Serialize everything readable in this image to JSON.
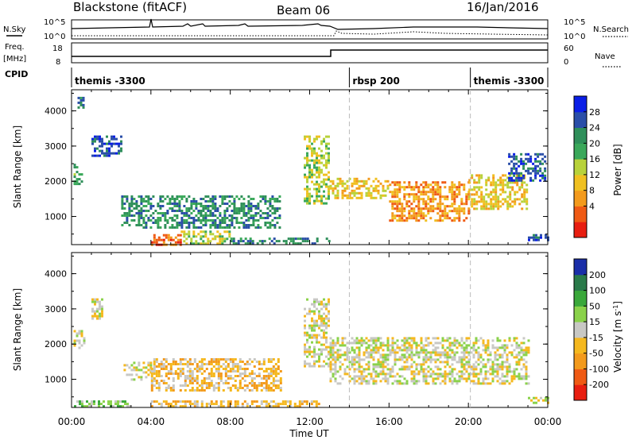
{
  "header": {
    "station": "Blackstone (fitACF)",
    "beam": "Beam 06",
    "date": "16/Jan/2016"
  },
  "labels": {
    "nsky": "N.Sky",
    "nsearch": "N.Search",
    "freq": "Freq.",
    "freq_unit": "[MHz]",
    "nave": "Nave",
    "cpid": "CPID",
    "nsky_ticks": [
      "10^5",
      "10^0"
    ],
    "nsearch_ticks": [
      "10^5",
      "10^0"
    ],
    "freq_ticks": [
      "18",
      "8"
    ],
    "nave_ticks": [
      "60",
      "0"
    ]
  },
  "cpid_segments": [
    {
      "label": "themis -3300",
      "start": 0
    },
    {
      "label": "rbsp 200",
      "start": 14
    },
    {
      "label": "themis -3300",
      "start": 20.1
    }
  ],
  "chart_data": [
    {
      "type": "heatmap",
      "name": "power",
      "ylabel": "Slant Range [km]",
      "xlim": [
        0,
        24
      ],
      "ylim": [
        200,
        4600
      ],
      "yticks": [
        1000,
        2000,
        3000,
        4000
      ],
      "colorbar": {
        "label": "Power [dB]",
        "ticks": [
          "28",
          "24",
          "20",
          "16",
          "12",
          "8",
          "4"
        ],
        "colors": [
          "#0a1ee6",
          "#2a4ea8",
          "#2f8f5a",
          "#3aa85a",
          "#b8d23a",
          "#f0c020",
          "#f39a1c",
          "#ef5a14",
          "#e81e10"
        ]
      },
      "cpid_boundaries": [
        14,
        20.1
      ],
      "features": [
        {
          "x": [
            0.1,
            0.5
          ],
          "range": [
            1900,
            2500
          ],
          "level": 3
        },
        {
          "x": [
            0.3,
            0.6
          ],
          "range": [
            4100,
            4400
          ],
          "level": 2
        },
        {
          "x": [
            1.0,
            2.5
          ],
          "range": [
            2700,
            3300
          ],
          "level": 1
        },
        {
          "x": [
            2.5,
            10.5
          ],
          "range": [
            700,
            1600
          ],
          "level": 2
        },
        {
          "x": [
            4.0,
            5.5
          ],
          "range": [
            200,
            500
          ],
          "level": 7
        },
        {
          "x": [
            5.5,
            8.0
          ],
          "range": [
            200,
            600
          ],
          "level": 4
        },
        {
          "x": [
            8.0,
            13.0
          ],
          "range": [
            200,
            400
          ],
          "level": 2
        },
        {
          "x": [
            11.7,
            13.0
          ],
          "range": [
            1400,
            3300
          ],
          "level": 4
        },
        {
          "x": [
            13.0,
            16.0
          ],
          "range": [
            1500,
            2100
          ],
          "level": 5
        },
        {
          "x": [
            16.0,
            20.0
          ],
          "range": [
            900,
            2000
          ],
          "level": 6
        },
        {
          "x": [
            20.0,
            23.0
          ],
          "range": [
            1200,
            2200
          ],
          "level": 5
        },
        {
          "x": [
            22.0,
            23.9
          ],
          "range": [
            2000,
            2800
          ],
          "level": 1
        },
        {
          "x": [
            23.0,
            24.0
          ],
          "range": [
            300,
            500
          ],
          "level": 1
        }
      ]
    },
    {
      "type": "heatmap",
      "name": "velocity",
      "ylabel": "Slant Range [km]",
      "xlabel": "Time UT",
      "xlim": [
        0,
        24
      ],
      "ylim": [
        200,
        4600
      ],
      "xticks": [
        "00:00",
        "04:00",
        "08:00",
        "12:00",
        "16:00",
        "20:00",
        "00:00"
      ],
      "yticks": [
        1000,
        2000,
        3000,
        4000
      ],
      "colorbar": {
        "label": "Velocity [m s",
        "label_sup": "-1",
        "label_end": "]",
        "ticks": [
          "200",
          "100",
          "50",
          "15",
          "-15",
          "-50",
          "-100",
          "-200"
        ],
        "colors": [
          "#1a2ea8",
          "#2a7a4a",
          "#3aa83a",
          "#8ad24a",
          "#c8c8c4",
          "#f5b81e",
          "#f39a1c",
          "#ef5a14",
          "#e81e10"
        ]
      },
      "cpid_boundaries": [
        14,
        20.1
      ],
      "features": [
        {
          "x": [
            0.1,
            0.6
          ],
          "range": [
            1900,
            2400
          ],
          "level": 4
        },
        {
          "x": [
            1.0,
            1.5
          ],
          "range": [
            2700,
            3300
          ],
          "level": 4
        },
        {
          "x": [
            2.5,
            4.0
          ],
          "range": [
            1000,
            1500
          ],
          "level": 4
        },
        {
          "x": [
            4.0,
            10.5
          ],
          "range": [
            700,
            1600
          ],
          "level": 5
        },
        {
          "x": [
            4.0,
            12.5
          ],
          "range": [
            200,
            400
          ],
          "level": 5
        },
        {
          "x": [
            0.0,
            3.0
          ],
          "range": [
            200,
            400
          ],
          "level": 3
        },
        {
          "x": [
            11.7,
            13.0
          ],
          "range": [
            1400,
            3300
          ],
          "level": 4
        },
        {
          "x": [
            13.0,
            23.0
          ],
          "range": [
            900,
            2200
          ],
          "level": 4
        },
        {
          "x": [
            23.0,
            24.0
          ],
          "range": [
            300,
            500
          ],
          "level": 4
        }
      ]
    }
  ]
}
